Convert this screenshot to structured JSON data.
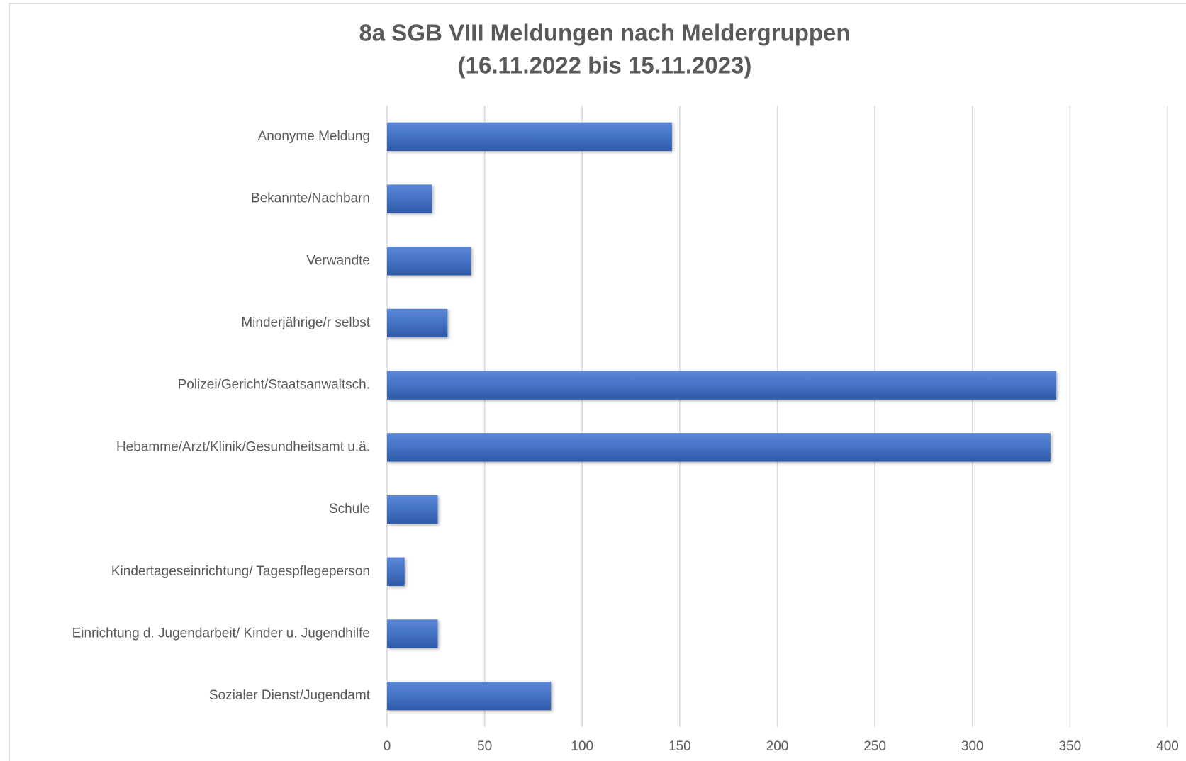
{
  "chart_data": {
    "type": "barh",
    "title": "8a SGB VIII Meldungen nach Meldergruppen",
    "subtitle": "(16.11.2022 bis 15.11.2023)",
    "categories": [
      "Anonyme Meldung",
      "Bekannte/Nachbarn",
      "Verwandte",
      "Minderjährige/r selbst",
      "Polizei/Gericht/Staatsanwaltsch.",
      "Hebamme/Arzt/Klinik/Gesundheitsamt u.ä.",
      "Schule",
      "Kindertageseinrichtung/ Tagespflegeperson",
      "Einrichtung d. Jugendarbeit/ Kinder u. Jugendhilfe",
      "Sozialer Dienst/Jugendamt"
    ],
    "values": [
      146,
      23,
      43,
      31,
      343,
      340,
      26,
      9,
      26,
      84
    ],
    "color": "#4472c4",
    "xlim": [
      0,
      400
    ],
    "xticks": [
      0,
      50,
      100,
      150,
      200,
      250,
      300,
      350,
      400
    ],
    "grid": true
  }
}
